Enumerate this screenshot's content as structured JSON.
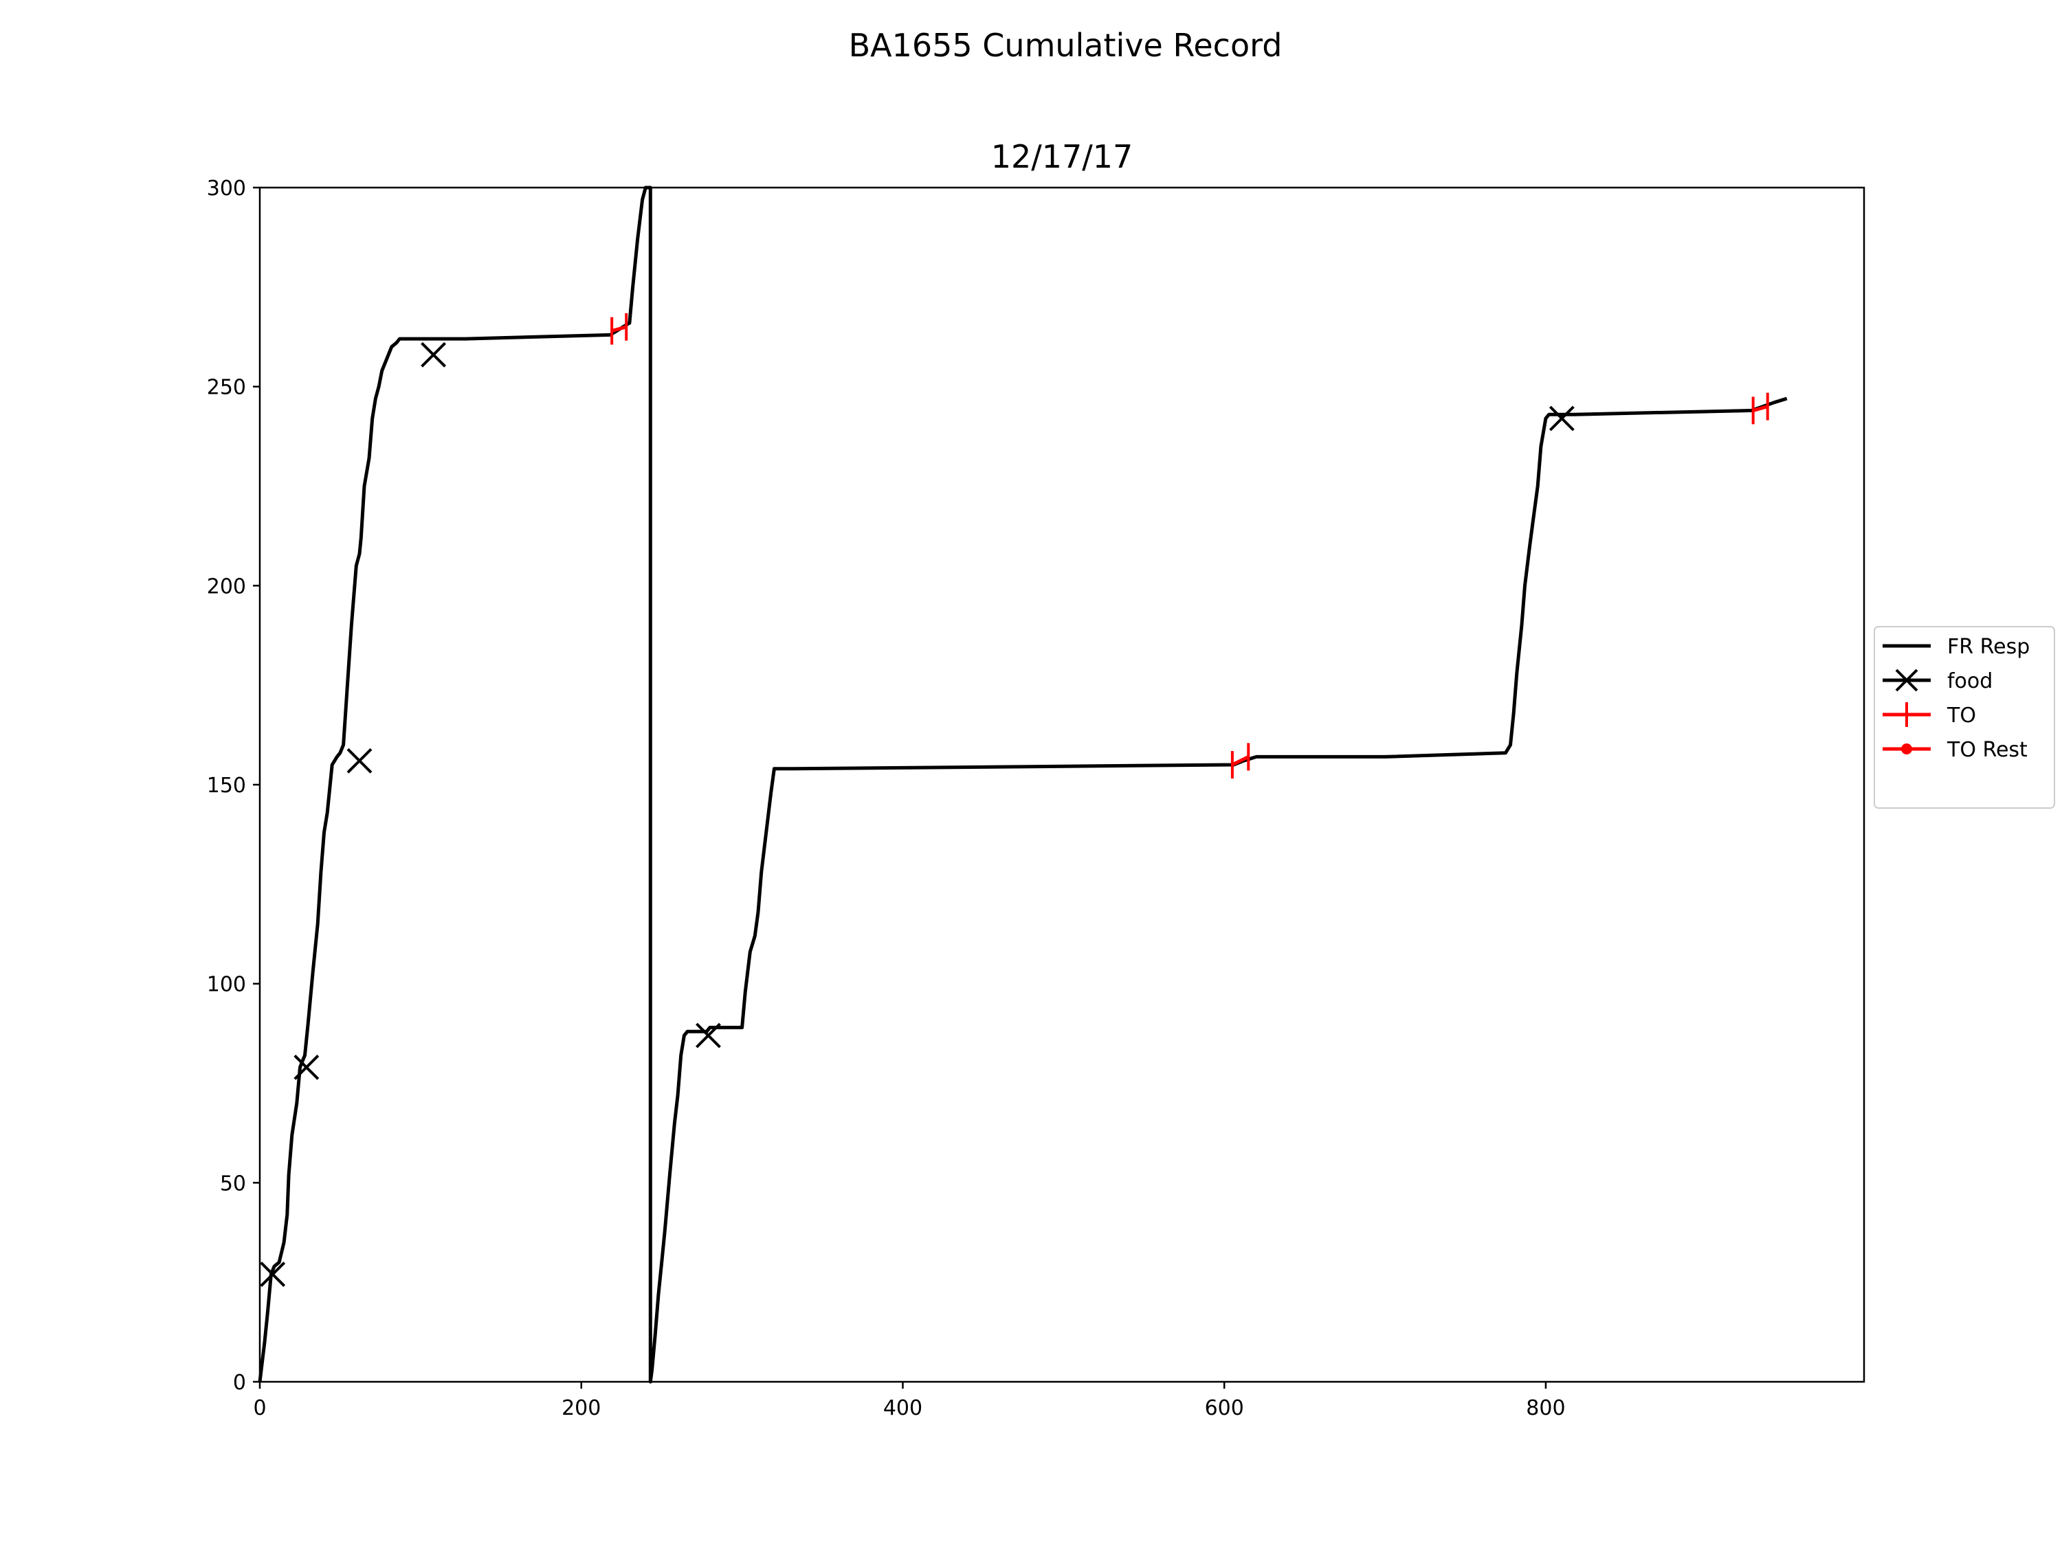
{
  "chart_data": {
    "type": "line",
    "suptitle": "BA1655 Cumulative Record",
    "title": "12/17/17",
    "xlabel": "",
    "ylabel": "",
    "xlim": [
      0,
      998
    ],
    "ylim": [
      0,
      300
    ],
    "xticks": [
      0,
      200,
      400,
      600,
      800
    ],
    "xtick_labels": [
      "0",
      "200",
      "400",
      "600",
      "800"
    ],
    "yticks": [
      0,
      50,
      100,
      150,
      200,
      250,
      300
    ],
    "ytick_labels": [
      "0",
      "50",
      "100",
      "150",
      "200",
      "250",
      "300"
    ],
    "grid": false,
    "legend_position": "center-right outside",
    "colors": {
      "resp": "#000000",
      "to": "#ff0000"
    },
    "series": [
      {
        "name": "FR Resp",
        "style": "line",
        "color": "#000000",
        "x": [
          0,
          3,
          5,
          7,
          9,
          12,
          15,
          17,
          18,
          20,
          23,
          25,
          27,
          28,
          30,
          33,
          36,
          38,
          40,
          42,
          45,
          48,
          50,
          52,
          55,
          57,
          60,
          62,
          63,
          65,
          68,
          70,
          72,
          74,
          76,
          78,
          80,
          82,
          85,
          87,
          88,
          90,
          93,
          95,
          97,
          100,
          102,
          104,
          106,
          108,
          110,
          113,
          115,
          118,
          122,
          125,
          128,
          218,
          222,
          226,
          230,
          232,
          235,
          238,
          240,
          242,
          243,
          243,
          244,
          246,
          248,
          250,
          252,
          255,
          258,
          260,
          262,
          264,
          266,
          268,
          270,
          272,
          274,
          276,
          278,
          280,
          283,
          300,
          302,
          305,
          308,
          310,
          312,
          315,
          318,
          320,
          322,
          325,
          327,
          330,
          332,
          606,
          612,
          620,
          700,
          775,
          778,
          780,
          782,
          785,
          787,
          790,
          792,
          795,
          797,
          800,
          802,
          805,
          807,
          810,
          812,
          818,
          928,
          935,
          942,
          950
        ],
        "y": [
          0,
          10,
          18,
          27,
          29,
          30,
          35,
          42,
          52,
          62,
          70,
          79,
          81,
          82,
          90,
          103,
          115,
          128,
          138,
          143,
          155,
          157,
          158,
          160,
          178,
          190,
          205,
          208,
          212,
          225,
          232,
          242,
          247,
          250,
          254,
          256,
          258,
          260,
          261,
          262,
          262,
          262,
          262,
          262,
          262,
          262,
          262,
          262,
          262,
          262,
          262,
          262,
          262,
          262,
          262,
          262,
          262,
          263,
          264,
          265,
          266,
          275,
          287,
          297,
          300,
          300,
          300,
          0,
          3,
          12,
          22,
          30,
          38,
          52,
          65,
          72,
          82,
          87,
          88,
          88,
          88,
          88,
          88,
          88,
          88,
          89,
          89,
          89,
          98,
          108,
          112,
          118,
          128,
          138,
          148,
          154,
          154,
          154,
          154,
          154,
          154,
          155,
          156,
          157,
          157,
          158,
          160,
          168,
          178,
          190,
          200,
          210,
          216,
          225,
          235,
          242,
          243,
          243,
          243,
          243,
          243,
          243,
          244,
          245,
          246,
          247
        ]
      },
      {
        "name": "food",
        "style": "marker-x",
        "color": "#000000",
        "x": [
          8,
          29,
          62,
          108,
          279,
          810
        ],
        "y": [
          27,
          79,
          156,
          258,
          87,
          242
        ]
      },
      {
        "name": "TO",
        "style": "marker-vline",
        "color": "#ff0000",
        "x": [
          219,
          228,
          605,
          615,
          929,
          938
        ],
        "y": [
          264,
          265,
          155,
          157,
          244,
          245
        ]
      },
      {
        "name": "TO Rest",
        "style": "marker-dot",
        "color": "#ff0000",
        "x": [],
        "y": []
      }
    ]
  }
}
